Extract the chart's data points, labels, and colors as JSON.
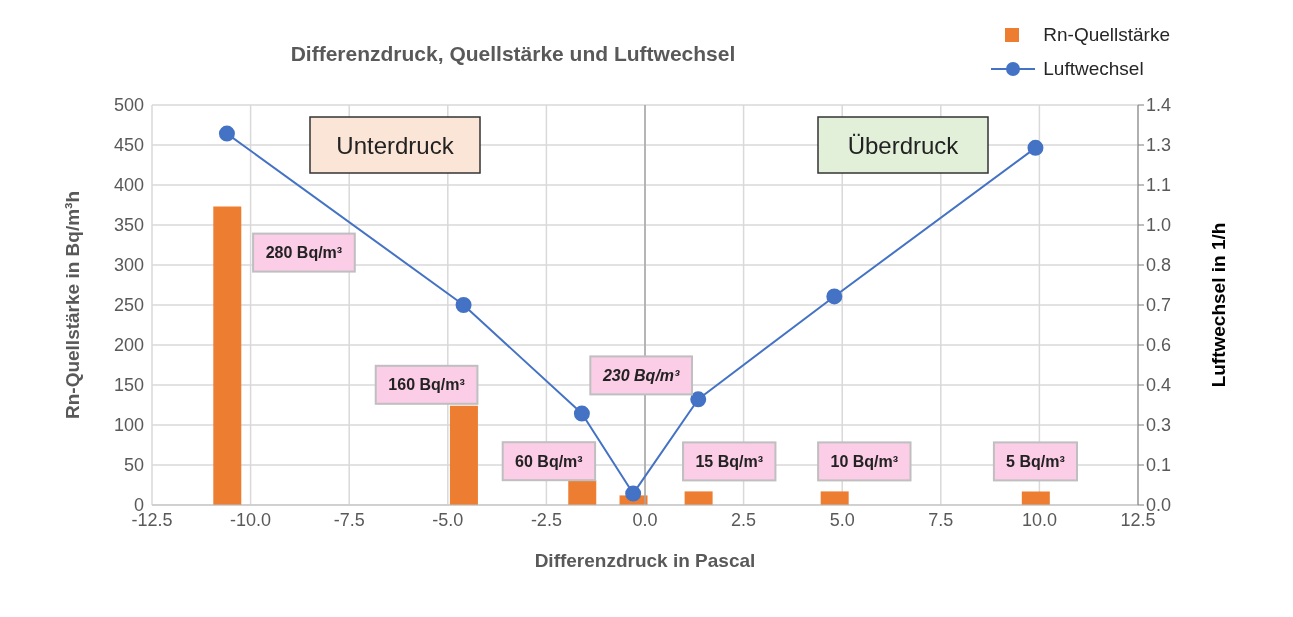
{
  "chart_data": {
    "type": "bar",
    "title": "Differenzdruck, Quellstärke und Luftwechsel",
    "xlabel": "Differenzdruck in Pascal",
    "ylabel": "Rn-Quellstärke in Bq/m³h",
    "y2label": "Luftwechsel in 1/h",
    "x": [
      -10.6,
      -4.6,
      -1.6,
      -0.3,
      1.35,
      4.8,
      9.9
    ],
    "series": [
      {
        "name": "Rn-Quellstärke",
        "color": "#ed7d31",
        "values": [
          373,
          124,
          31,
          12,
          17,
          17,
          17
        ]
      },
      {
        "name": "Luftwechsel",
        "type": "line",
        "axis": "y2",
        "color": "#4472c4",
        "marker": "circle",
        "values": [
          1.3,
          0.7,
          0.32,
          0.04,
          0.37,
          0.73,
          1.25
        ]
      }
    ],
    "xlim": [
      -12.5,
      12.5
    ],
    "xticks": [
      {
        "value": -12.5,
        "label": "-12.5"
      },
      {
        "value": -10,
        "label": "-10.0"
      },
      {
        "value": -7.5,
        "label": "-7.5"
      },
      {
        "value": -5,
        "label": "-5.0"
      },
      {
        "value": -2.5,
        "label": "-2.5"
      },
      {
        "value": 0,
        "label": "0.0"
      },
      {
        "value": 2.5,
        "label": "2.5"
      },
      {
        "value": 5,
        "label": "5.0"
      },
      {
        "value": 7.5,
        "label": "7.5"
      },
      {
        "value": 10,
        "label": "10.0"
      },
      {
        "value": 12.5,
        "label": "12.5"
      }
    ],
    "ylim": [
      0,
      500
    ],
    "yticks": [
      0,
      50,
      100,
      150,
      200,
      250,
      300,
      350,
      400,
      450,
      500
    ],
    "y2lim": [
      0,
      1.4
    ],
    "y2ticks": [
      {
        "value": 0,
        "label": "0.0"
      },
      {
        "value": 0.14,
        "label": "0.1"
      },
      {
        "value": 0.28,
        "label": "0.3"
      },
      {
        "value": 0.42,
        "label": "0.4"
      },
      {
        "value": 0.56,
        "label": "0.6"
      },
      {
        "value": 0.7,
        "label": "0.7"
      },
      {
        "value": 0.84,
        "label": "0.8"
      },
      {
        "value": 0.98,
        "label": "1.0"
      },
      {
        "value": 1.12,
        "label": "1.1"
      },
      {
        "value": 1.26,
        "label": "1.3"
      },
      {
        "value": 1.4,
        "label": "1.4"
      }
    ],
    "grid": true,
    "legend": "top right",
    "ref_lines": [
      {
        "axis": "x",
        "value": 0,
        "color": "#a6a6a6"
      }
    ],
    "annotations": [
      "Unterdruck",
      "Überdruck",
      "280 Bq/m³",
      "160 Bq/m³",
      "60 Bq/m³",
      "230 Bq/m³",
      "15 Bq/m³",
      "10 Bq/m³",
      "5 Bq/m³"
    ]
  }
}
